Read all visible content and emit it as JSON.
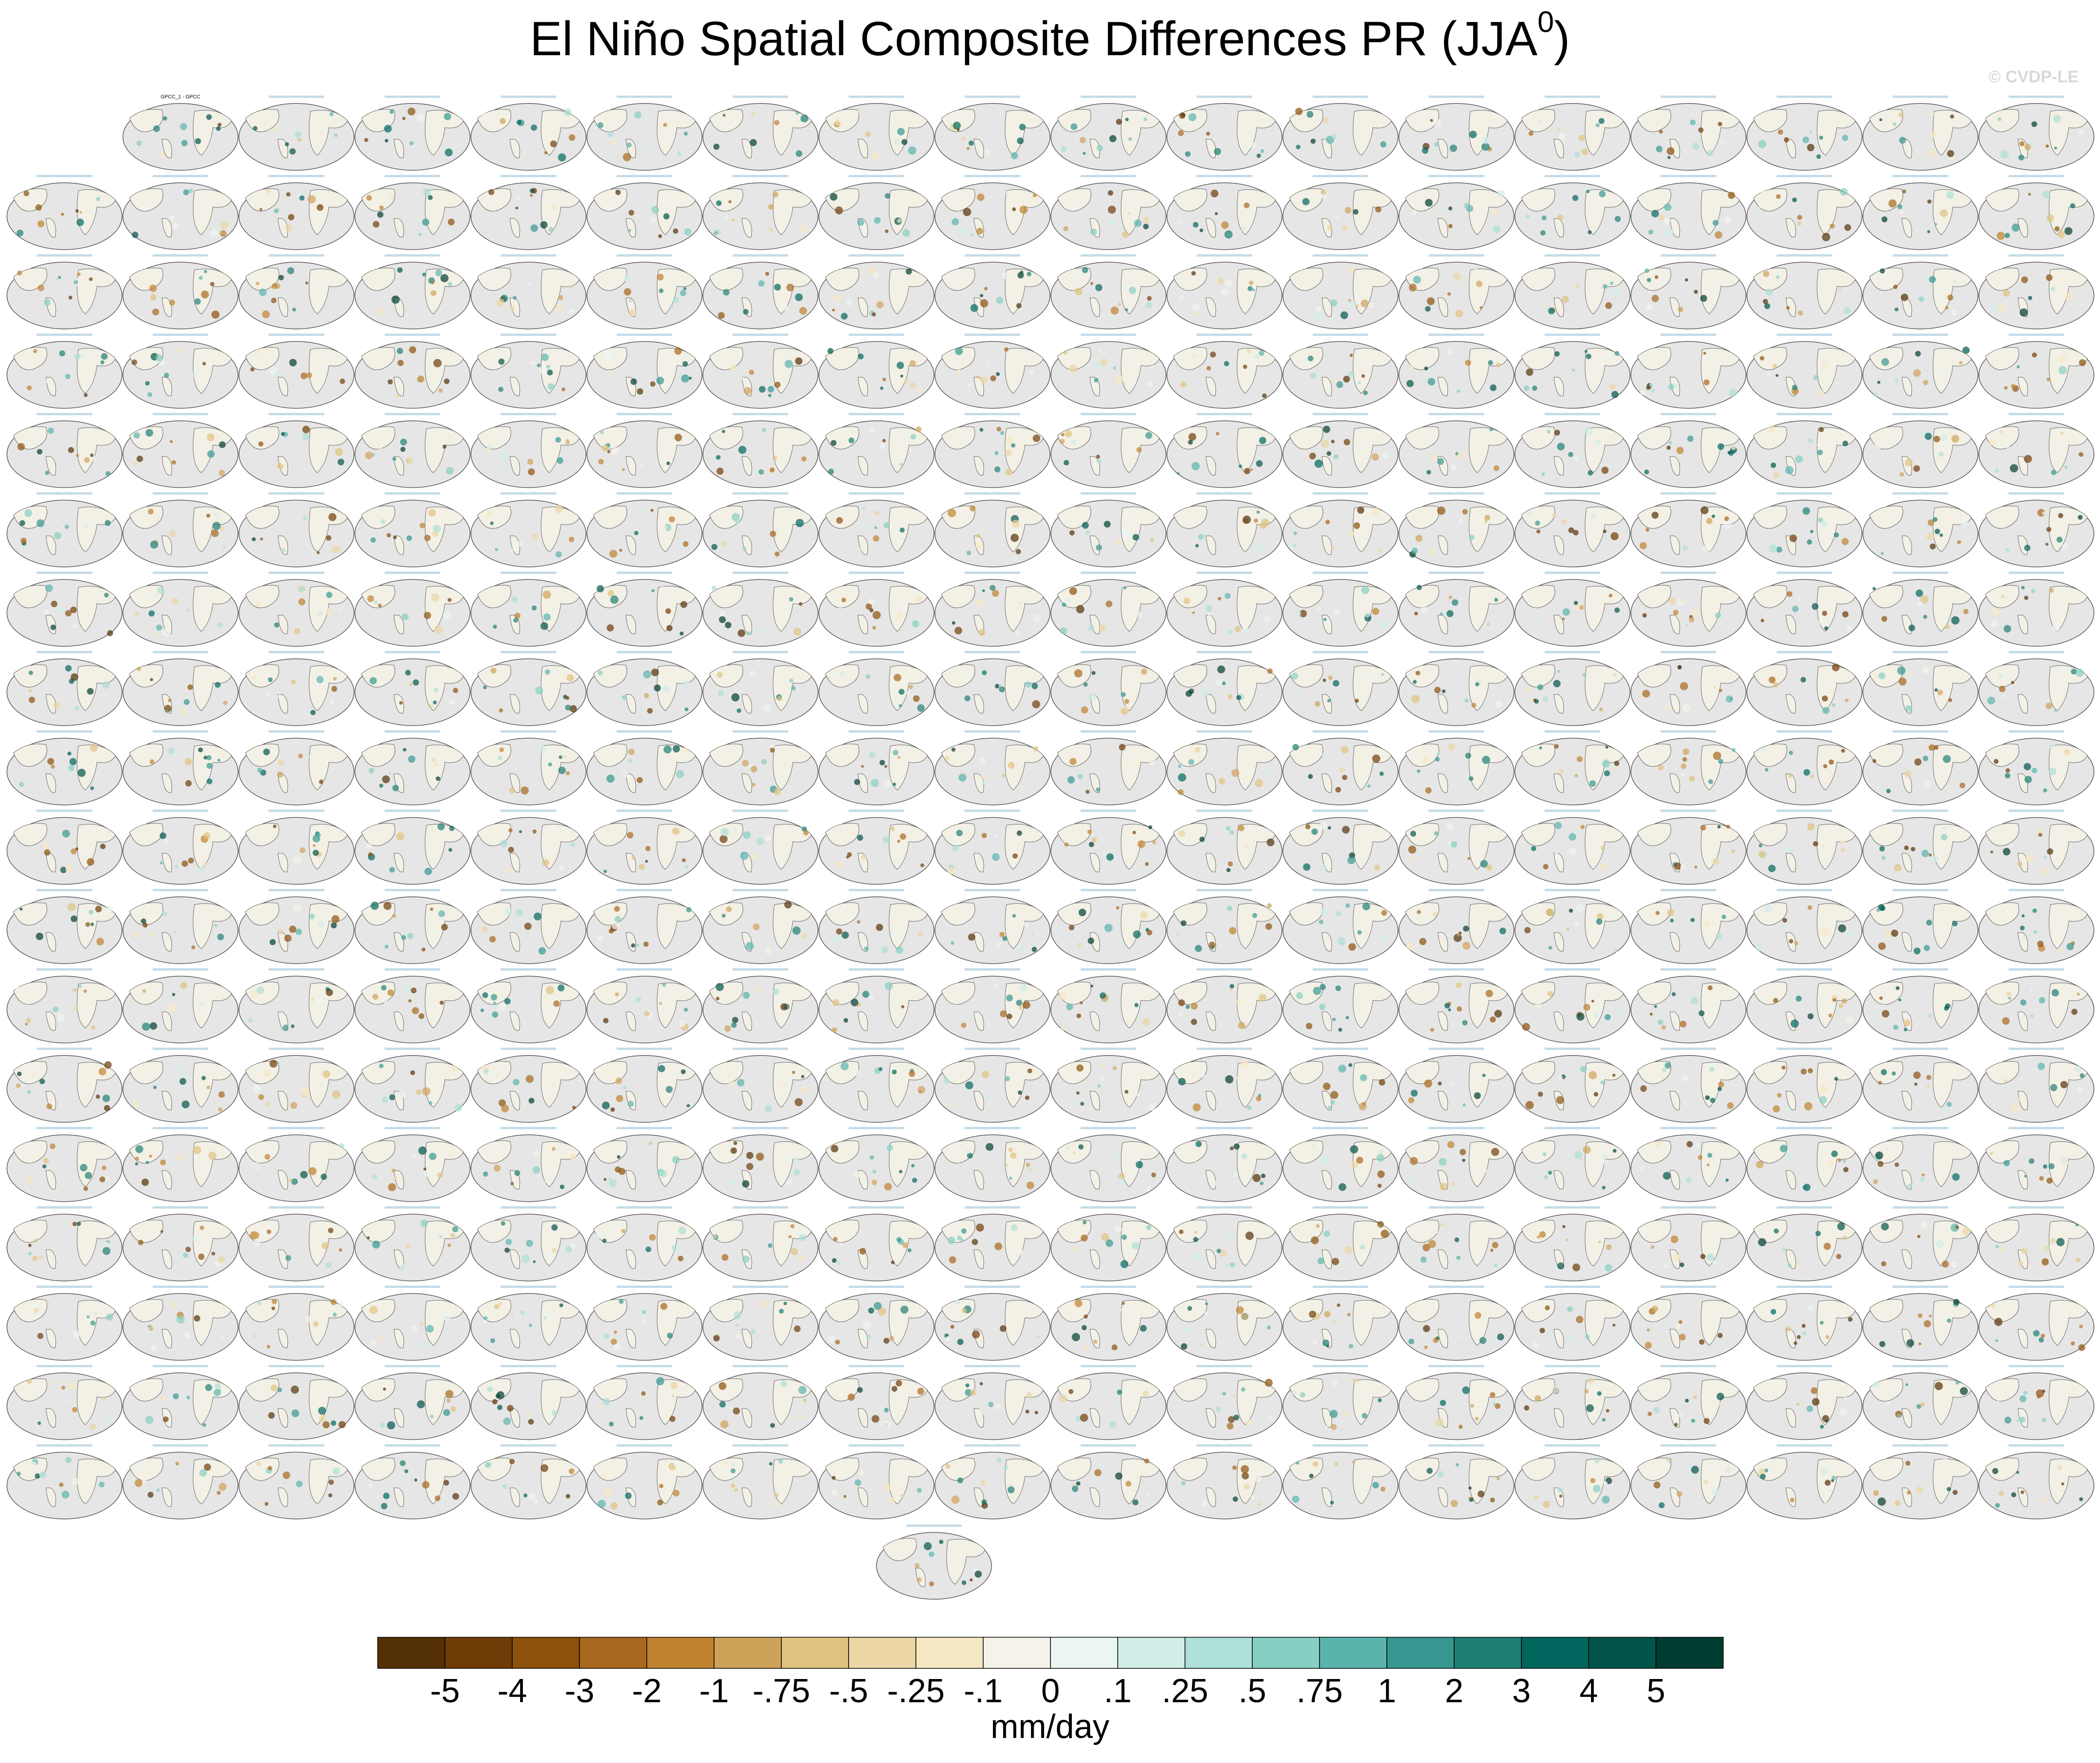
{
  "header": {
    "title": "El Niño Spatial Composite Differences PR (JJA",
    "title_superscript": "0",
    "title_end": ")",
    "watermark": "© CVDP-LE"
  },
  "panels": {
    "first_title": "GPCC_1 - GPCC"
  },
  "colorbar": {
    "labels": [
      "-5",
      "-4",
      "-3",
      "-2",
      "-1",
      "-.75",
      "-.5",
      "-.25",
      "-.1",
      "0",
      ".1",
      ".25",
      ".5",
      ".75",
      "1",
      "2",
      "3",
      "4",
      "5"
    ],
    "colors": [
      "#543005",
      "#6f3c07",
      "#8c510a",
      "#a8681d",
      "#bf812d",
      "#cfa25a",
      "#dfc27d",
      "#ebd6a4",
      "#f6e8c3",
      "#f5f2ea",
      "#ebf5f2",
      "#d0ede7",
      "#ade0d6",
      "#86cfc2",
      "#5ab4ac",
      "#35978f",
      "#1e7f74",
      "#01665e",
      "#00544a",
      "#003c30"
    ],
    "unit": "mm/day"
  }
}
